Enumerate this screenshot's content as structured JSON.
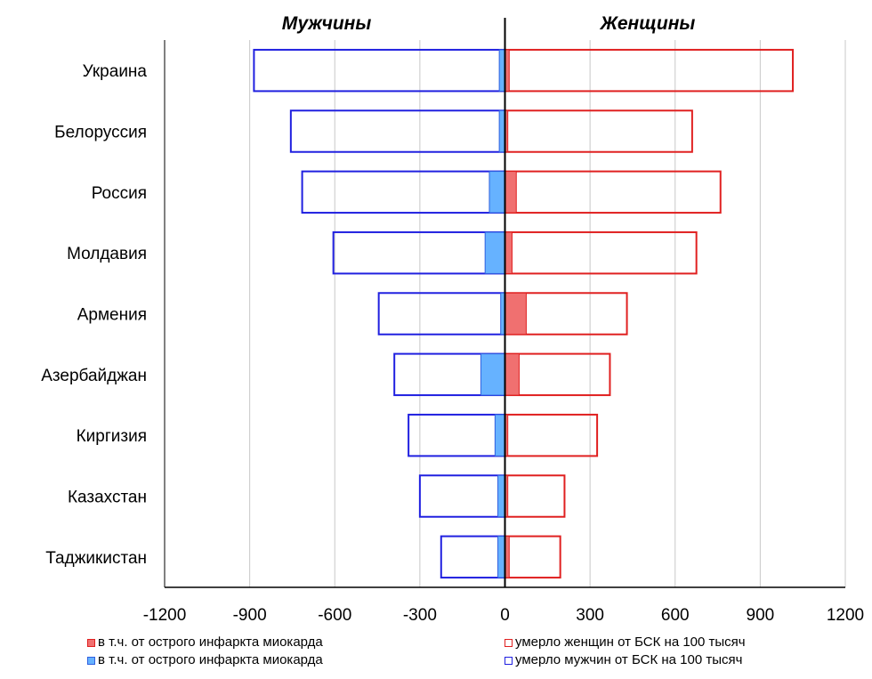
{
  "chart_data": {
    "type": "bar",
    "orientation": "horizontal",
    "layout": "population-pyramid",
    "panel_titles": {
      "left": "Мужчины",
      "right": "Женщины"
    },
    "categories": [
      "Украина",
      "Белоруссия",
      "Россия",
      "Молдавия",
      "Армения",
      "Азербайджан",
      "Киргизия",
      "Казахстан",
      "Таджикистан"
    ],
    "series": [
      {
        "name": "умерло мужчин от БСК на 100 тысяч",
        "style": "outline",
        "color": "#2020e0",
        "values": [
          -885,
          -755,
          -715,
          -605,
          -445,
          -390,
          -340,
          -300,
          -225
        ]
      },
      {
        "name": "в т.ч. от острого инфаркта  миокарда",
        "style": "filled",
        "color": "#66b2ff",
        "edge": "#3060e0",
        "values": [
          -20,
          -20,
          -55,
          -70,
          -15,
          -85,
          -35,
          -25,
          -25
        ]
      },
      {
        "name": "умерло женщин от БСК на 100 тысяч",
        "style": "outline",
        "color": "#e02020",
        "values": [
          1015,
          660,
          760,
          675,
          430,
          370,
          325,
          210,
          195
        ]
      },
      {
        "name": "в т.ч. от острого инфаркта  миокарда",
        "style": "filled",
        "color": "#f07070",
        "edge": "#e02020",
        "values": [
          15,
          10,
          40,
          25,
          75,
          50,
          10,
          10,
          15
        ]
      }
    ],
    "x_ticks": [
      -1200,
      -900,
      -600,
      -300,
      0,
      300,
      600,
      900,
      1200
    ],
    "xlim": [
      -1200,
      1200
    ],
    "grid": true,
    "legend": {
      "position": "bottom",
      "items": [
        {
          "label": "в т.ч. от острого инфаркта  миокарда",
          "swatch": "filled",
          "color": "#f07070",
          "edge": "#e02020"
        },
        {
          "label": "умерло женщин от БСК на 100 тысяч",
          "swatch": "outline",
          "color": "#e02020"
        },
        {
          "label": "в т.ч. от острого инфаркта  миокарда",
          "swatch": "filled",
          "color": "#66b2ff",
          "edge": "#3060e0"
        },
        {
          "label": "умерло мужчин от БСК на 100 тысяч",
          "swatch": "outline",
          "color": "#2020e0"
        }
      ]
    }
  }
}
